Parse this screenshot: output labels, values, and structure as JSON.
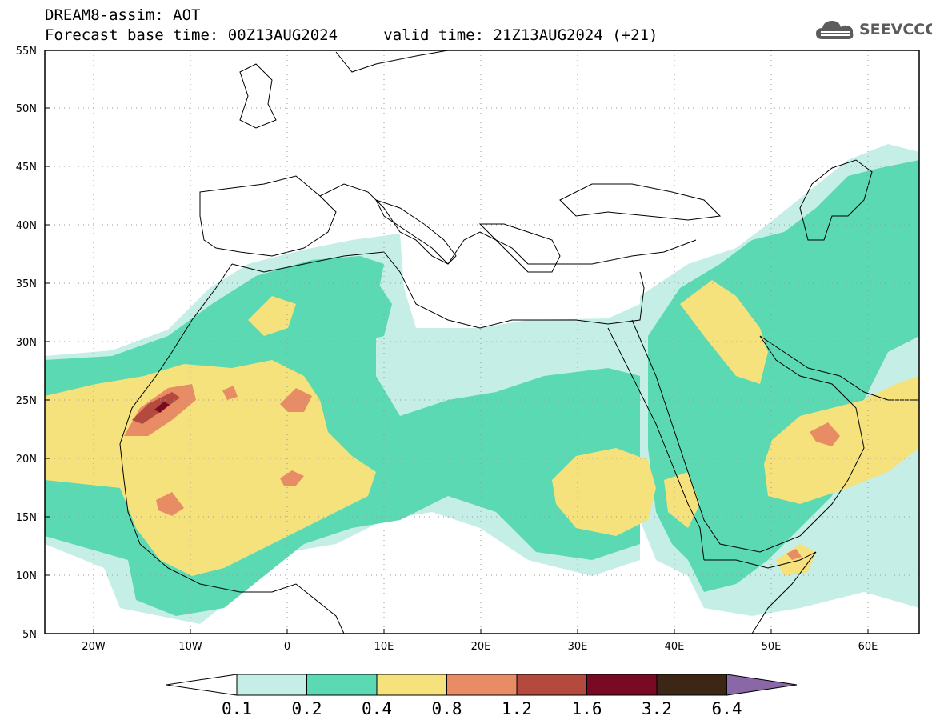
{
  "header": {
    "title": "DREAM8-assim: AOT",
    "base_time": "Forecast base time: 00Z13AUG2024",
    "valid_time": "valid time: 21Z13AUG2024 (+21)"
  },
  "logo": {
    "text": "SEEVCCC",
    "icon": "cloud-icon"
  },
  "map": {
    "lon_range": [
      -25,
      65
    ],
    "lat_range": [
      5,
      55
    ],
    "lon_ticks": [
      {
        "value": -20,
        "label": "20W"
      },
      {
        "value": -10,
        "label": "10W"
      },
      {
        "value": 0,
        "label": "0"
      },
      {
        "value": 10,
        "label": "10E"
      },
      {
        "value": 20,
        "label": "20E"
      },
      {
        "value": 30,
        "label": "30E"
      },
      {
        "value": 40,
        "label": "40E"
      },
      {
        "value": 50,
        "label": "50E"
      },
      {
        "value": 60,
        "label": "60E"
      }
    ],
    "lat_ticks": [
      {
        "value": 5,
        "label": "5N"
      },
      {
        "value": 10,
        "label": "10N"
      },
      {
        "value": 15,
        "label": "15N"
      },
      {
        "value": 20,
        "label": "20N"
      },
      {
        "value": 25,
        "label": "25N"
      },
      {
        "value": 30,
        "label": "30N"
      },
      {
        "value": 35,
        "label": "35N"
      },
      {
        "value": 40,
        "label": "40N"
      },
      {
        "value": 45,
        "label": "45N"
      },
      {
        "value": 50,
        "label": "50N"
      },
      {
        "value": 55,
        "label": "55N"
      }
    ],
    "gridlines": "dotted"
  },
  "colorbar": {
    "under_color": "#ffffff",
    "over_color": "#8a68a8",
    "levels": [
      "0.1",
      "0.2",
      "0.4",
      "0.8",
      "1.2",
      "1.6",
      "3.2",
      "6.4"
    ],
    "colors": [
      "#c4eee6",
      "#5ad9b2",
      "#f5e27c",
      "#e88c66",
      "#b44a3e",
      "#780a23",
      "#3c2717"
    ]
  }
}
